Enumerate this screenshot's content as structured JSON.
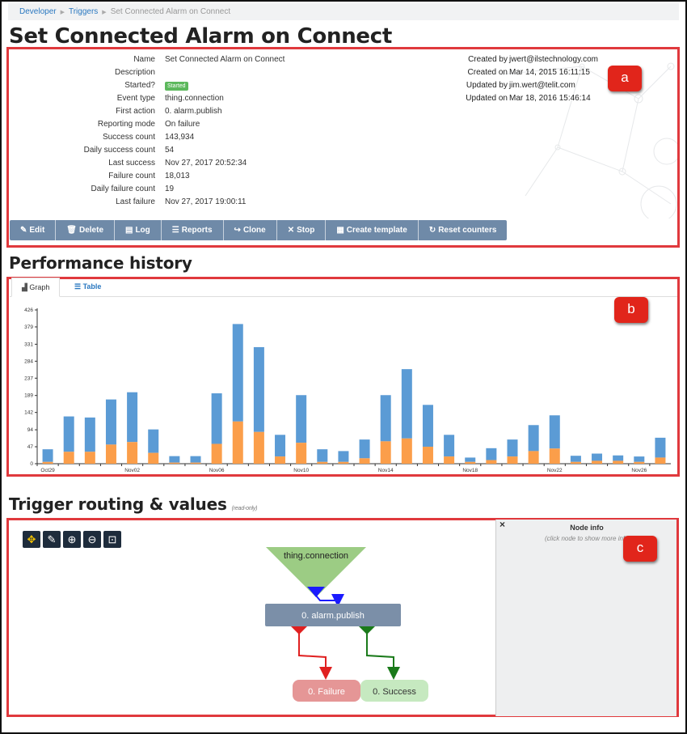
{
  "breadcrumb": {
    "items": [
      "Developer",
      "Triggers"
    ],
    "current": "Set Connected Alarm on Connect"
  },
  "page_title": "Set Connected Alarm on Connect",
  "properties": [
    {
      "key": "Name",
      "value": "Set Connected Alarm on Connect"
    },
    {
      "key": "Description",
      "value": ""
    },
    {
      "key": "Started?",
      "value": "Started",
      "badge": true
    },
    {
      "key": "Event type",
      "value": "thing.connection"
    },
    {
      "key": "First action",
      "value": "0. alarm.publish"
    },
    {
      "key": "Reporting mode",
      "value": "On failure"
    },
    {
      "key": "Success count",
      "value": "143,934"
    },
    {
      "key": "Daily success count",
      "value": "54"
    },
    {
      "key": "Last success",
      "value": "Nov 27, 2017 20:52:34"
    },
    {
      "key": "Failure count",
      "value": "18,013"
    },
    {
      "key": "Daily failure count",
      "value": "19"
    },
    {
      "key": "Last failure",
      "value": "Nov 27, 2017 19:00:11"
    }
  ],
  "meta": [
    {
      "key": "Created by",
      "value": "jwert@ilstechnology.com"
    },
    {
      "key": "Created on",
      "value": "Mar 14, 2015 16:11:15"
    },
    {
      "key": "Updated by",
      "value": "jim.wert@telit.com"
    },
    {
      "key": "Updated on",
      "value": "Mar 18, 2016 15:46:14"
    }
  ],
  "toolbar": [
    {
      "label": "Edit",
      "icon": "edit-icon",
      "glyph": "✎"
    },
    {
      "label": "Delete",
      "icon": "trash-icon",
      "glyph": "🗑"
    },
    {
      "label": "Log",
      "icon": "log-icon",
      "glyph": "▤"
    },
    {
      "label": "Reports",
      "icon": "reports-icon",
      "glyph": "☰"
    },
    {
      "label": "Clone",
      "icon": "clone-icon",
      "glyph": "↪"
    },
    {
      "label": "Stop",
      "icon": "stop-icon",
      "glyph": "✕"
    },
    {
      "label": "Create template",
      "icon": "template-icon",
      "glyph": "▦"
    },
    {
      "label": "Reset counters",
      "icon": "reset-icon",
      "glyph": "↻"
    }
  ],
  "callouts": {
    "a": "a",
    "b": "b",
    "c": "c"
  },
  "performance": {
    "title": "Performance history",
    "tabs": [
      "Graph",
      "Table"
    ]
  },
  "chart_data": {
    "type": "bar",
    "stacked": true,
    "colors": {
      "success": "#5b9bd5",
      "failure": "#fb9e4a"
    },
    "yticks": [
      0,
      47,
      94,
      142,
      189,
      237,
      284,
      331,
      379,
      426
    ],
    "ylim": [
      0,
      426
    ],
    "xtick_labels": [
      {
        "i": 0,
        "label": "Oct29"
      },
      {
        "i": 4,
        "label": "Nov02"
      },
      {
        "i": 8,
        "label": "Nov06"
      },
      {
        "i": 12,
        "label": "Nov10"
      },
      {
        "i": 16,
        "label": "Nov14"
      },
      {
        "i": 20,
        "label": "Nov18"
      },
      {
        "i": 24,
        "label": "Nov22"
      },
      {
        "i": 28,
        "label": "Nov26"
      }
    ],
    "series": [
      {
        "name": "failure",
        "values": [
          5,
          33,
          33,
          53,
          60,
          30,
          3,
          3,
          55,
          117,
          88,
          20,
          58,
          5,
          5,
          15,
          62,
          70,
          47,
          20,
          5,
          10,
          20,
          35,
          42,
          5,
          8,
          8,
          5,
          17
        ]
      },
      {
        "name": "success",
        "values": [
          35,
          98,
          95,
          125,
          138,
          65,
          18,
          18,
          140,
          270,
          235,
          60,
          132,
          35,
          30,
          52,
          128,
          192,
          116,
          60,
          12,
          33,
          47,
          72,
          92,
          17,
          20,
          15,
          15,
          55
        ]
      }
    ]
  },
  "routing": {
    "title": "Trigger routing & values",
    "subtitle": "(read-only)",
    "nodes": {
      "event": "thing.connection",
      "action": "0. alarm.publish",
      "failure": "0. Failure",
      "success": "0. Success"
    },
    "tools": [
      "move-icon",
      "pencil-icon",
      "zoom-in-icon",
      "zoom-out-icon",
      "fit-icon"
    ],
    "node_info": {
      "title": "Node info",
      "hint": "(click node to show more info)",
      "close": "×"
    }
  }
}
